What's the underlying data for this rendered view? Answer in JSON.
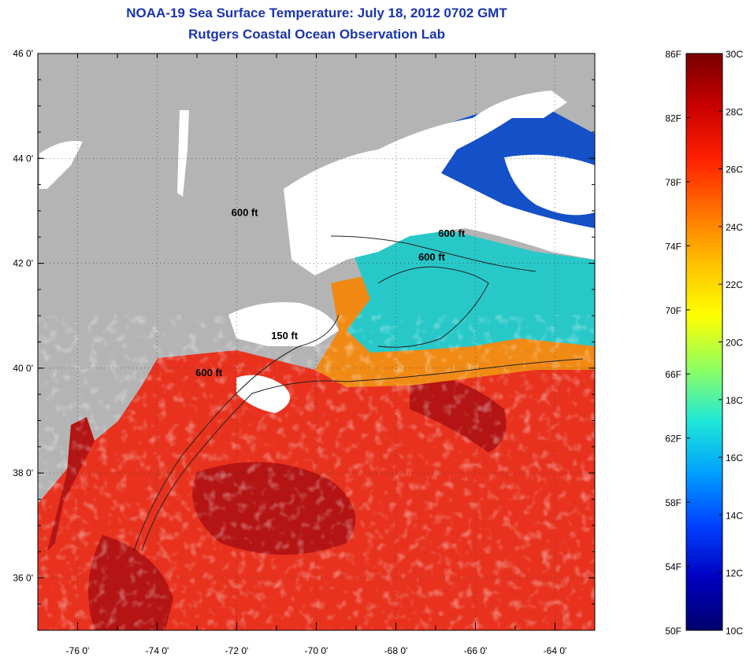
{
  "title": "NOAA-19 Sea Surface Temperature:  July 18, 2012 0702 GMT",
  "subtitle": "Rutgers Coastal Ocean Observation Lab",
  "map": {
    "lat_ticks": [
      {
        "value": 46,
        "label": "46 0'"
      },
      {
        "value": 44,
        "label": "44 0'"
      },
      {
        "value": 42,
        "label": "42 0'"
      },
      {
        "value": 40,
        "label": "40 0'"
      },
      {
        "value": 38,
        "label": "38 0'"
      },
      {
        "value": 36,
        "label": "36 0'"
      }
    ],
    "lon_ticks": [
      {
        "value": -76,
        "label": "-76 0'"
      },
      {
        "value": -74,
        "label": "-74 0'"
      },
      {
        "value": -72,
        "label": "-72 0'"
      },
      {
        "value": -70,
        "label": "-70 0'"
      },
      {
        "value": -68,
        "label": "-68 0'"
      },
      {
        "value": -66,
        "label": "-66 0'"
      },
      {
        "value": -64,
        "label": "-64 0'"
      }
    ],
    "lat_range": [
      35,
      46
    ],
    "lon_range": [
      -77,
      -63
    ],
    "isobath_labels": [
      {
        "text": "600 ft",
        "lon": -71.8,
        "lat": 42.9
      },
      {
        "text": "600 ft",
        "lon": -66.6,
        "lat": 42.5
      },
      {
        "text": "600 ft",
        "lon": -67.1,
        "lat": 42.05
      },
      {
        "text": "150 ft",
        "lon": -70.8,
        "lat": 40.55
      },
      {
        "text": "600 ft",
        "lon": -72.7,
        "lat": 39.85
      }
    ],
    "colors": {
      "land": "#b4b4b4",
      "cloud": "#ffffff",
      "warm_water": "#e8321e",
      "hot_water": "#b41414",
      "mid_water": "#f08a14",
      "cool_water": "#28c8c8",
      "cold_water": "#1450c8"
    }
  },
  "colorbar": {
    "fahrenheit": [
      "86F",
      "82F",
      "78F",
      "74F",
      "70F",
      "66F",
      "62F",
      "58F",
      "54F",
      "50F"
    ],
    "celsius": [
      "30C",
      "28C",
      "26C",
      "24C",
      "22C",
      "20C",
      "18C",
      "16C",
      "14C",
      "12C",
      "10C"
    ],
    "range_f": [
      50,
      86
    ],
    "range_c": [
      10,
      30
    ],
    "gradient_stops": [
      "#7a0000",
      "#c80000",
      "#ff2000",
      "#ff7000",
      "#ffc000",
      "#ffff00",
      "#90ff60",
      "#20e8d8",
      "#00a0ff",
      "#0040ff",
      "#0000c0",
      "#00006e"
    ]
  }
}
